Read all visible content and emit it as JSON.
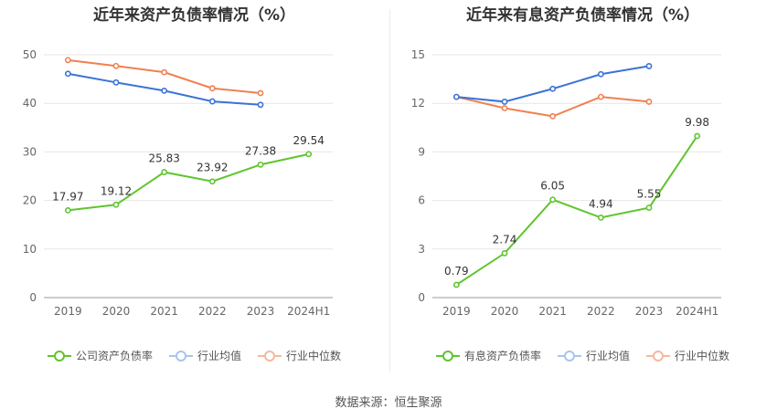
{
  "chart_data": [
    {
      "type": "line",
      "title": "近年来资产负债率情况（%）",
      "categories": [
        "2019",
        "2020",
        "2021",
        "2022",
        "2023",
        "2024H1"
      ],
      "ylim": [
        0,
        50
      ],
      "yticks": [
        0,
        10,
        20,
        30,
        40,
        50
      ],
      "grid": true,
      "legend_position": "bottom",
      "series": [
        {
          "name": "公司资产负债率",
          "color": "#5fc52e",
          "values": [
            17.97,
            19.12,
            25.83,
            23.92,
            27.38,
            29.54
          ],
          "labels": [
            "17.97",
            "19.12",
            "25.83",
            "23.92",
            "27.38",
            "29.54"
          ]
        },
        {
          "name": "行业均值",
          "color": "#3b74d4",
          "values": [
            46.1,
            44.3,
            42.6,
            40.4,
            39.7,
            null
          ]
        },
        {
          "name": "行业中位数",
          "color": "#f08050",
          "values": [
            48.9,
            47.7,
            46.4,
            43.1,
            42.1,
            null
          ]
        }
      ]
    },
    {
      "type": "line",
      "title": "近年来有息资产负债率情况（%）",
      "categories": [
        "2019",
        "2020",
        "2021",
        "2022",
        "2023",
        "2024H1"
      ],
      "ylim": [
        0,
        15
      ],
      "yticks": [
        0,
        3,
        6,
        9,
        12,
        15
      ],
      "grid": true,
      "legend_position": "bottom",
      "series": [
        {
          "name": "有息资产负债率",
          "color": "#5fc52e",
          "values": [
            0.79,
            2.74,
            6.05,
            4.94,
            5.55,
            9.98
          ],
          "labels": [
            "0.79",
            "2.74",
            "6.05",
            "4.94",
            "5.55",
            "9.98"
          ]
        },
        {
          "name": "行业均值",
          "color": "#3b74d4",
          "values": [
            12.4,
            12.1,
            12.9,
            13.8,
            14.3,
            null
          ]
        },
        {
          "name": "行业中位数",
          "color": "#f08050",
          "values": [
            12.4,
            11.7,
            11.2,
            12.4,
            12.1,
            null
          ]
        }
      ]
    }
  ],
  "source": "数据来源：恒生聚源"
}
